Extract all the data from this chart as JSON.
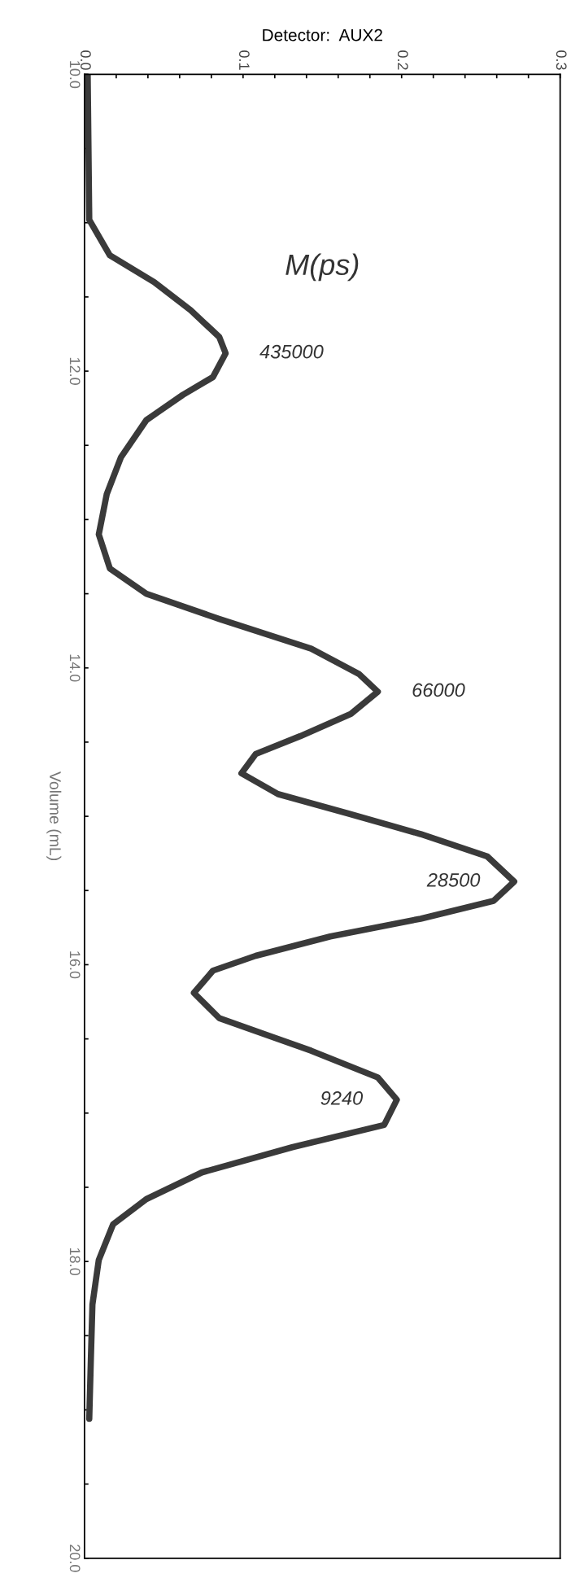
{
  "chart_data": {
    "type": "line",
    "xlabel": "Detector:  AUX2",
    "ylabel": "Volume (mL)",
    "series": [
      {
        "color": "#3a3a3a",
        "x": [
          0.002,
          0.003,
          0.016,
          0.044,
          0.067,
          0.085,
          0.089,
          0.081,
          0.062,
          0.039,
          0.023,
          0.014,
          0.009,
          0.016,
          0.039,
          0.085,
          0.143,
          0.173,
          0.185,
          0.168,
          0.136,
          0.108,
          0.099,
          0.122,
          0.166,
          0.212,
          0.254,
          0.271,
          0.258,
          0.212,
          0.155,
          0.108,
          0.081,
          0.069,
          0.085,
          0.143,
          0.185,
          0.197,
          0.189,
          0.131,
          0.074,
          0.039,
          0.018,
          0.009,
          0.005,
          0.004,
          0.003
        ],
        "values": [
          10.0,
          10.98,
          11.22,
          11.4,
          11.59,
          11.77,
          11.88,
          12.04,
          12.16,
          12.33,
          12.58,
          12.83,
          13.1,
          13.33,
          13.5,
          13.67,
          13.87,
          14.04,
          14.16,
          14.31,
          14.46,
          14.58,
          14.71,
          14.85,
          14.98,
          15.12,
          15.27,
          15.44,
          15.57,
          15.69,
          15.81,
          15.94,
          16.04,
          16.19,
          16.36,
          16.58,
          16.76,
          16.91,
          17.08,
          17.23,
          17.4,
          17.58,
          17.75,
          17.99,
          18.29,
          18.66,
          19.06
        ]
      }
    ],
    "ylim": [
      20,
      10
    ],
    "yticks": [
      {
        "value": 10,
        "label": "10.0"
      },
      {
        "value": 10.5,
        "label": null
      },
      {
        "value": 11,
        "label": null
      },
      {
        "value": 11.5,
        "label": null
      },
      {
        "value": 12,
        "label": "12.0"
      },
      {
        "value": 12.5,
        "label": null
      },
      {
        "value": 13,
        "label": null
      },
      {
        "value": 13.5,
        "label": null
      },
      {
        "value": 14,
        "label": "14.0"
      },
      {
        "value": 14.5,
        "label": null
      },
      {
        "value": 15,
        "label": null
      },
      {
        "value": 15.5,
        "label": null
      },
      {
        "value": 16,
        "label": "16.0"
      },
      {
        "value": 16.5,
        "label": null
      },
      {
        "value": 17,
        "label": null
      },
      {
        "value": 17.5,
        "label": null
      },
      {
        "value": 18,
        "label": "18.0"
      },
      {
        "value": 18.5,
        "label": null
      },
      {
        "value": 19,
        "label": null
      },
      {
        "value": 19.5,
        "label": null
      },
      {
        "value": 20,
        "label": "20.0"
      }
    ],
    "xlim": [
      0,
      0.3
    ],
    "xticks": [
      {
        "value": 0,
        "label": "0.0"
      },
      {
        "value": 0.02,
        "label": null
      },
      {
        "value": 0.04,
        "label": null
      },
      {
        "value": 0.06,
        "label": null
      },
      {
        "value": 0.08,
        "label": null
      },
      {
        "value": 0.1,
        "label": "0.1"
      },
      {
        "value": 0.12,
        "label": null
      },
      {
        "value": 0.14,
        "label": null
      },
      {
        "value": 0.16,
        "label": null
      },
      {
        "value": 0.18,
        "label": null
      },
      {
        "value": 0.2,
        "label": "0.2"
      },
      {
        "value": 0.22,
        "label": null
      },
      {
        "value": 0.24,
        "label": null
      },
      {
        "value": 0.26,
        "label": null
      },
      {
        "value": 0.28,
        "label": null
      },
      {
        "value": 0.3,
        "label": "0.3"
      }
    ],
    "grid": false,
    "legend": false,
    "marker": "none",
    "line_style": "solid",
    "annotations": [
      "M(ps)",
      {
        "text": "435000",
        "x": 0.089,
        "y": 11.88
      },
      {
        "text": "66000",
        "x": 0.185,
        "y": 14.16
      },
      {
        "text": "28500",
        "x": 0.271,
        "y": 15.44
      },
      {
        "text": "9240",
        "x": 0.197,
        "y": 16.91
      }
    ]
  }
}
